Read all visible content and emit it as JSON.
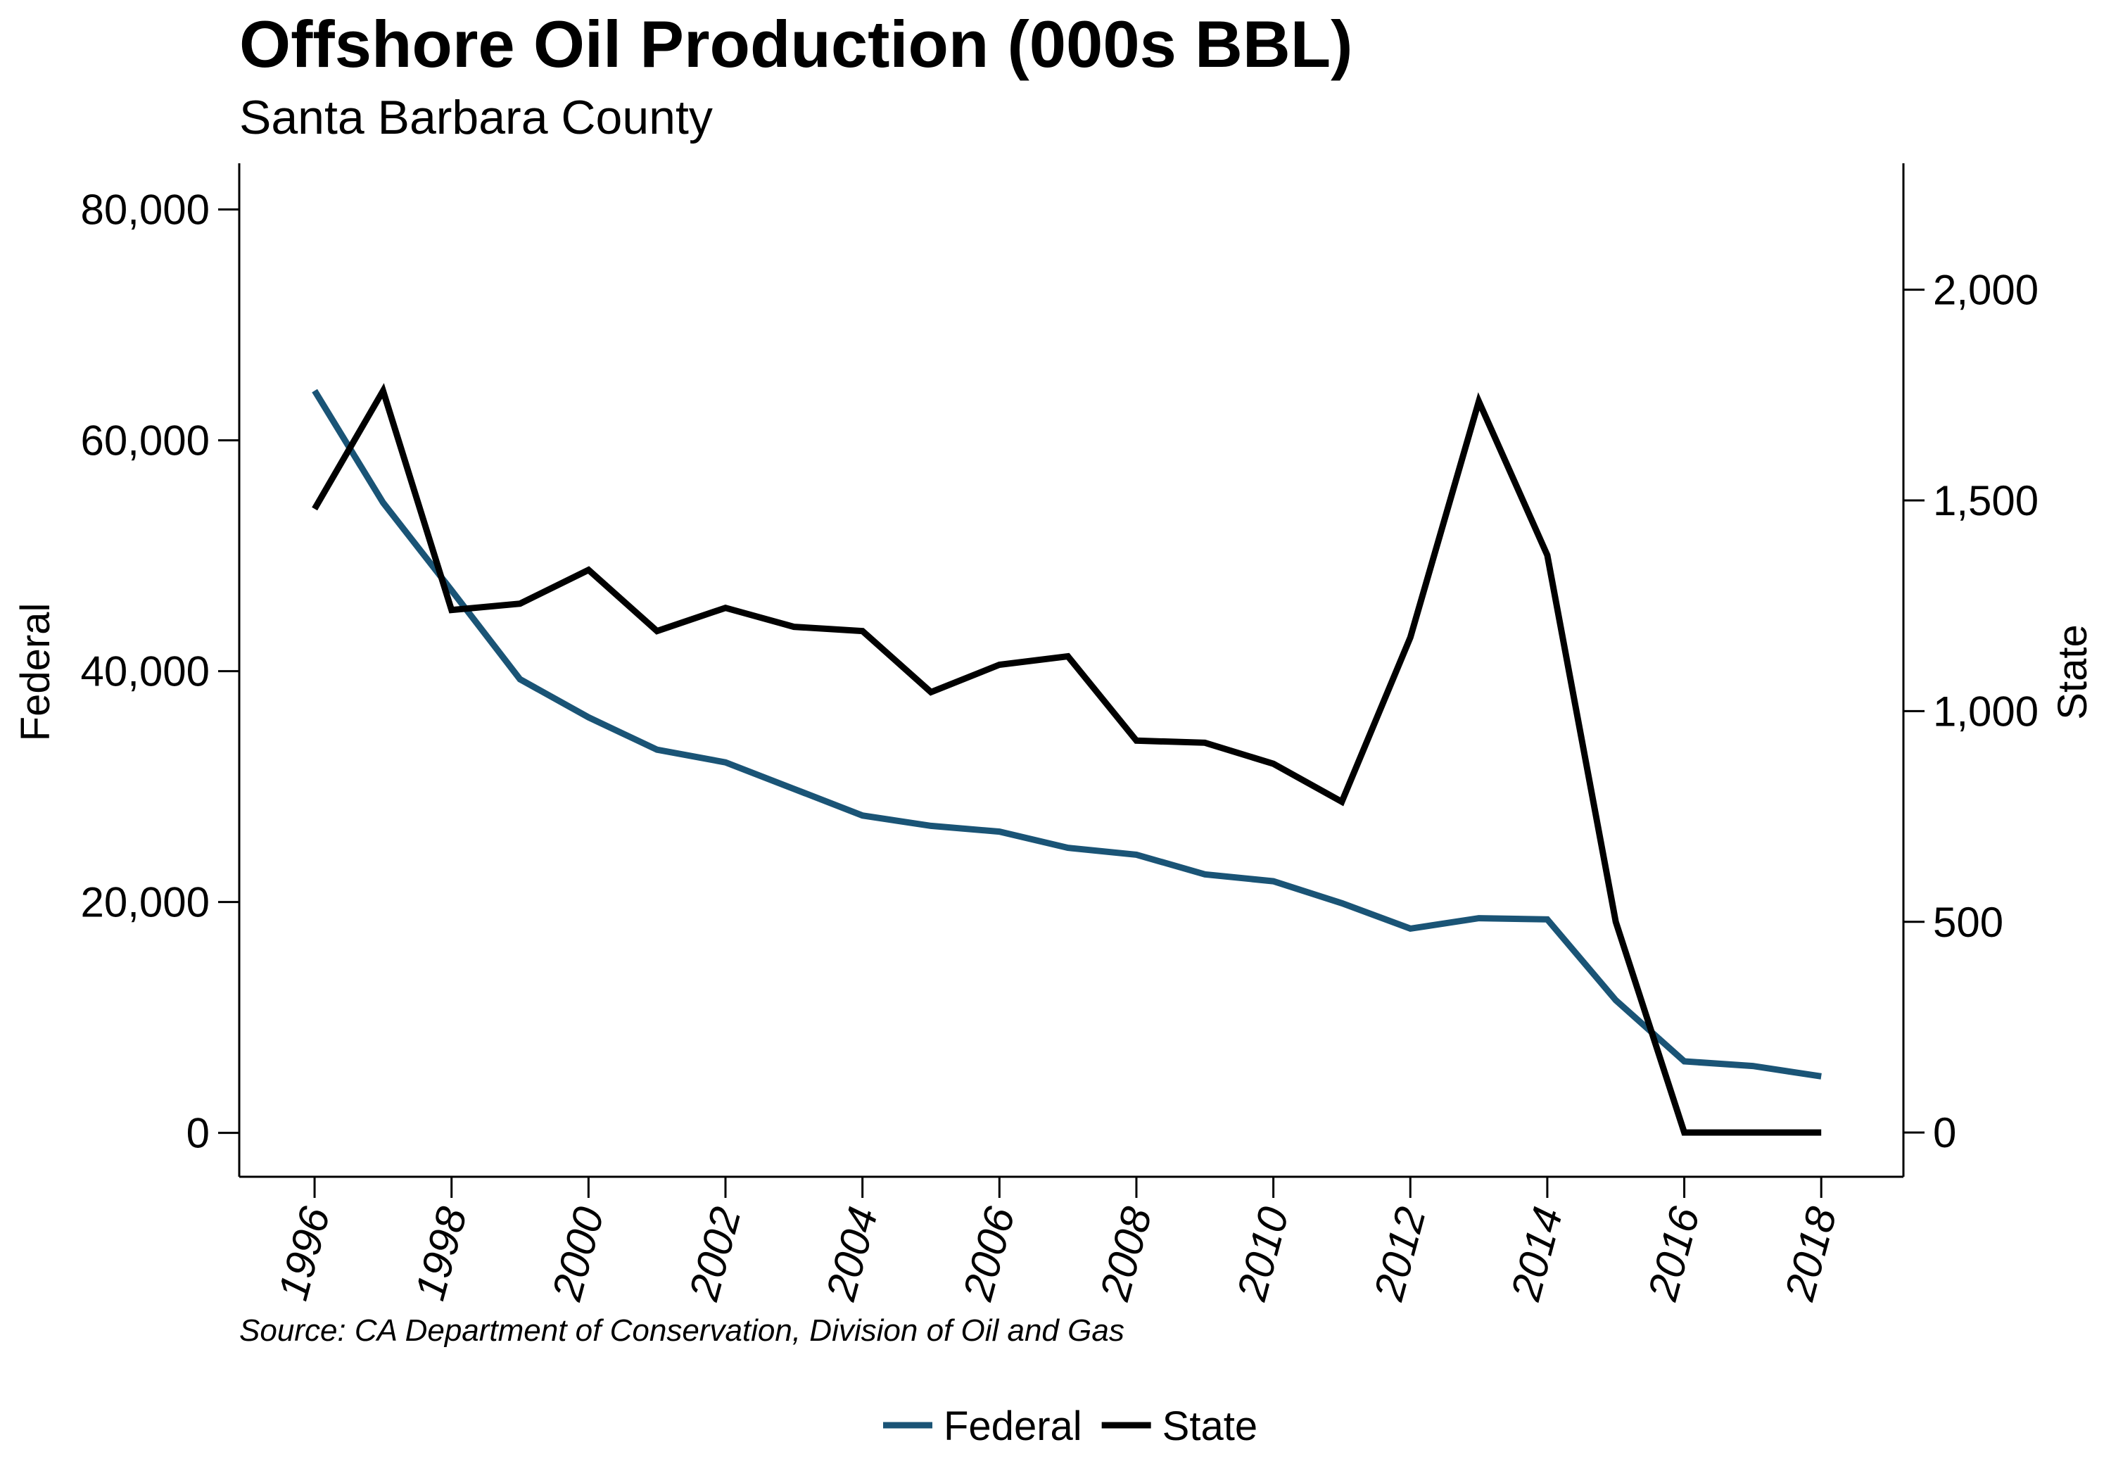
{
  "chart_data": {
    "type": "line",
    "title": "Offshore Oil Production (000s BBL)",
    "subtitle": "Santa Barbara County",
    "source": "Source: CA Department of Conservation, Division of Oil and Gas",
    "x": [
      1996,
      1997,
      1998,
      1999,
      2000,
      2001,
      2002,
      2003,
      2004,
      2005,
      2006,
      2007,
      2008,
      2009,
      2010,
      2011,
      2012,
      2013,
      2014,
      2015,
      2016,
      2017,
      2018
    ],
    "x_ticks": [
      "1996",
      "1998",
      "2000",
      "2002",
      "2004",
      "2006",
      "2008",
      "2010",
      "2012",
      "2014",
      "2016",
      "2018"
    ],
    "xlim": [
      1994.9,
      2019.2
    ],
    "y_left": {
      "label": "Federal",
      "ticks": [
        "0",
        "20,000",
        "40,000",
        "60,000",
        "80,000"
      ],
      "tick_values": [
        0,
        20000,
        40000,
        60000,
        80000
      ],
      "lim": [
        -3800,
        84000
      ]
    },
    "y_right": {
      "label": "State",
      "ticks": [
        "0",
        "500",
        "1,000",
        "1,500",
        "2,000"
      ],
      "tick_values": [
        0,
        500,
        1000,
        1500,
        2000
      ],
      "lim": [
        -105,
        2300
      ]
    },
    "series": [
      {
        "name": "Federal",
        "axis": "left",
        "color": "#1a5476",
        "values": [
          64300,
          54600,
          47000,
          39300,
          36000,
          33200,
          32100,
          29800,
          27500,
          26600,
          26100,
          24700,
          24100,
          22400,
          21800,
          19900,
          17700,
          18600,
          18500,
          11500,
          6200,
          5800,
          4900
        ]
      },
      {
        "name": "State",
        "axis": "right",
        "color": "#000000",
        "values": [
          1480,
          1760,
          1240,
          1255,
          1335,
          1190,
          1245,
          1200,
          1190,
          1045,
          1110,
          1130,
          930,
          925,
          875,
          785,
          1175,
          1735,
          1370,
          500,
          0,
          0,
          0
        ]
      }
    ],
    "legend": {
      "position": "bottom-center",
      "entries": [
        "Federal",
        "State"
      ]
    },
    "grid": false
  }
}
